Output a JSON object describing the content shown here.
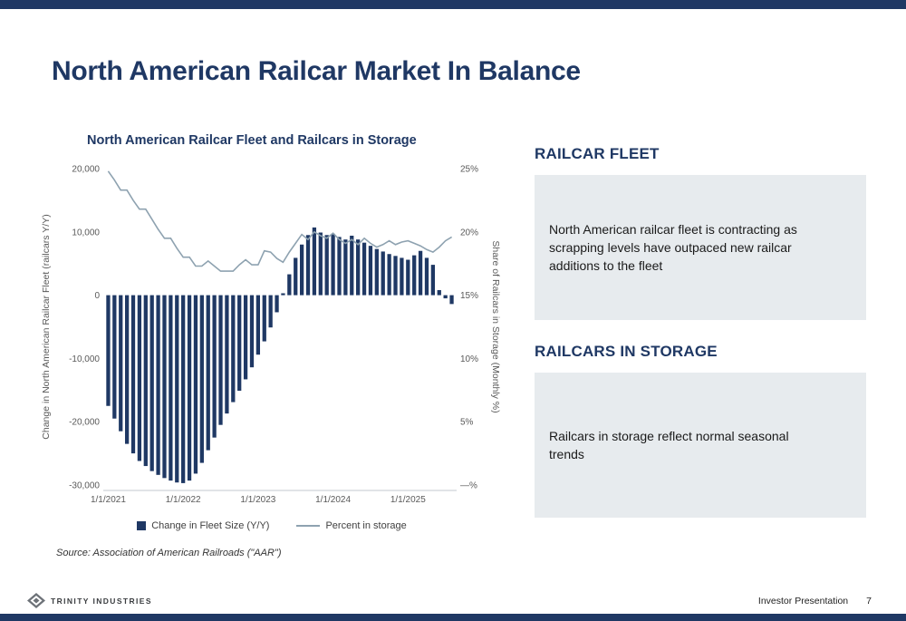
{
  "page": {
    "title": "North American Railcar Market In Balance",
    "footer": {
      "brand": "TRINITY INDUSTRIES",
      "right_text": "Investor Presentation",
      "page_number": "7"
    }
  },
  "chart": {
    "title": "North American Railcar Fleet and Railcars in Storage",
    "source": "Source: Association of American Railroads (\"AAR\")"
  },
  "chart_data": {
    "type": "combo",
    "title": "North American Railcar Fleet and Railcars in Storage",
    "x": [
      "1/2021",
      "2/2021",
      "3/2021",
      "4/2021",
      "5/2021",
      "6/2021",
      "7/2021",
      "8/2021",
      "9/2021",
      "10/2021",
      "11/2021",
      "12/2021",
      "1/2022",
      "2/2022",
      "3/2022",
      "4/2022",
      "5/2022",
      "6/2022",
      "7/2022",
      "8/2022",
      "9/2022",
      "10/2022",
      "11/2022",
      "12/2022",
      "1/2023",
      "2/2023",
      "3/2023",
      "4/2023",
      "5/2023",
      "6/2023",
      "7/2023",
      "8/2023",
      "9/2023",
      "10/2023",
      "11/2023",
      "12/2023",
      "1/2024",
      "2/2024",
      "3/2024",
      "4/2024",
      "5/2024",
      "6/2024",
      "7/2024",
      "8/2024",
      "9/2024",
      "10/2024",
      "11/2024",
      "12/2024",
      "1/2025",
      "2/2025",
      "3/2025",
      "4/2025",
      "5/2025",
      "6/2025",
      "7/2025",
      "8/2025"
    ],
    "series": [
      {
        "name": "Change in Fleet Size (Y/Y)",
        "type": "bar",
        "axis": "left",
        "values": [
          -17500,
          -19500,
          -21500,
          -23500,
          -25000,
          -26200,
          -27000,
          -27800,
          -28400,
          -28900,
          -29300,
          -29600,
          -29700,
          -29300,
          -28200,
          -26500,
          -24500,
          -22500,
          -20500,
          -18700,
          -16900,
          -15100,
          -13300,
          -11400,
          -9400,
          -7300,
          -5100,
          -2700,
          300,
          3300,
          5900,
          8000,
          9500,
          10700,
          9900,
          9500,
          9700,
          9200,
          8800,
          9400,
          8800,
          8300,
          7800,
          7300,
          6900,
          6500,
          6200,
          5900,
          5600,
          6300,
          7000,
          5900,
          4800,
          800,
          -500,
          -1400
        ]
      },
      {
        "name": "Percent in storage",
        "type": "line",
        "axis": "right",
        "values": [
          24.8,
          24.1,
          23.3,
          23.3,
          22.5,
          21.8,
          21.8,
          21.0,
          20.2,
          19.5,
          19.5,
          18.7,
          18.0,
          18.0,
          17.3,
          17.3,
          17.7,
          17.3,
          16.9,
          16.9,
          16.9,
          17.4,
          17.8,
          17.4,
          17.4,
          18.5,
          18.4,
          17.9,
          17.6,
          18.4,
          19.1,
          19.8,
          19.4,
          20.0,
          19.7,
          19.5,
          19.9,
          19.4,
          19.1,
          19.4,
          19.0,
          19.5,
          19.1,
          18.8,
          19.0,
          19.3,
          19.0,
          19.2,
          19.3,
          19.1,
          18.9,
          18.6,
          18.4,
          18.8,
          19.3,
          19.6
        ]
      }
    ],
    "left_axis": {
      "label": "Change in North American Railcar Fleet (railcars Y/Y)",
      "ticks": [
        "20,000",
        "10,000",
        "0",
        "-10,000",
        "-20,000",
        "-30,000"
      ],
      "max": 20000,
      "min": -30000
    },
    "right_axis": {
      "label": "Share of Railcars in Storage (Monthly %)",
      "ticks": [
        "25%",
        "20%",
        "15%",
        "10%",
        "5%",
        "—%"
      ],
      "max": 25,
      "min": 0
    },
    "x_tick_labels": [
      "1/1/2021",
      "1/1/2022",
      "1/1/2023",
      "1/1/2024",
      "1/1/2025"
    ],
    "x_tick_positions": [
      0,
      12,
      24,
      36,
      48
    ],
    "grid": false,
    "legend_position": "bottom"
  },
  "right_panel": {
    "sections": [
      {
        "heading": "RAILCAR FLEET",
        "body": "North American railcar fleet is contracting as scrapping levels have outpaced new railcar additions to the fleet"
      },
      {
        "heading": "RAILCARS IN STORAGE",
        "body": "Railcars in storage reflect normal seasonal trends"
      }
    ]
  },
  "colors": {
    "navy": "#1f3864",
    "bar": "#1f3864",
    "line": "#8ea2b0",
    "panel_bg": "#e7ebee"
  }
}
